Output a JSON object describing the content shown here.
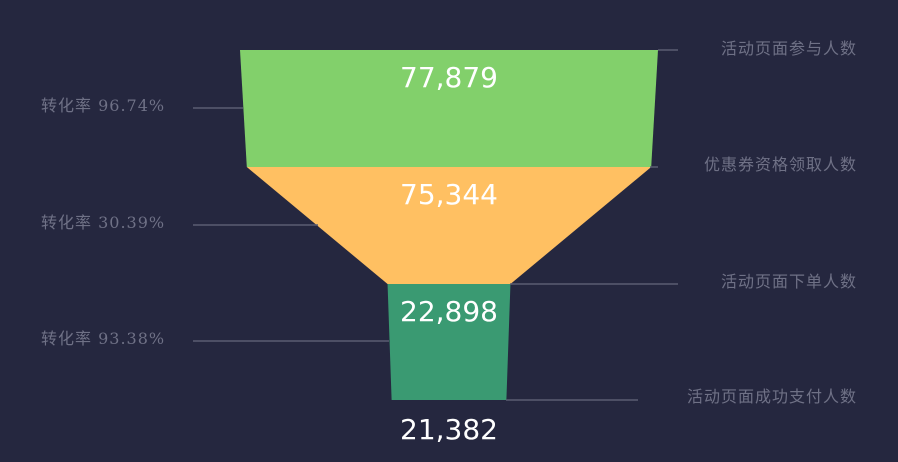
{
  "chart_data": {
    "type": "funnel",
    "stages": [
      {
        "label": "活动页面参与人数",
        "value": 77879,
        "value_text": "77,879",
        "color": "#82d06b"
      },
      {
        "label": "优惠券资格领取人数",
        "value": 75344,
        "value_text": "75,344",
        "color": "#ffc062"
      },
      {
        "label": "活动页面下单人数",
        "value": 22898,
        "value_text": "22,898",
        "color": "#3a9a72"
      },
      {
        "label": "活动页面成功支付人数",
        "value": 21382,
        "value_text": "21,382",
        "color": ""
      }
    ],
    "rates": [
      {
        "text": "转化率 96.74%",
        "value": 96.74
      },
      {
        "text": "转化率 30.39%",
        "value": 30.39
      },
      {
        "text": "转化率 93.38%",
        "value": 93.38
      }
    ]
  },
  "colors": {
    "background": "#25273f",
    "leader_line": "#5b5d72",
    "label_text": "#6f7186",
    "value_text": "#ffffff"
  }
}
